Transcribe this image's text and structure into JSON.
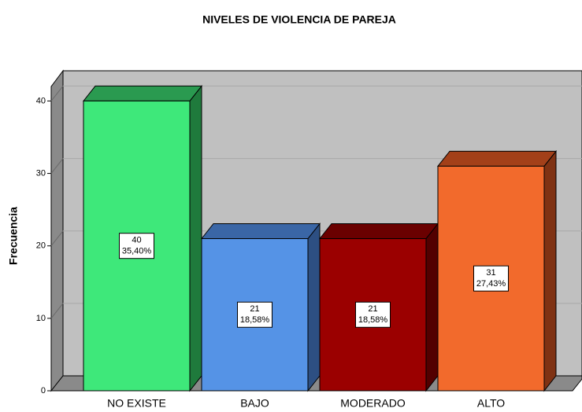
{
  "chart_data": {
    "type": "bar3d",
    "title": "NIVELES DE VIOLENCIA DE PAREJA",
    "ylabel": "Frecuencia",
    "categories": [
      "NO EXISTE",
      "BAJO",
      "MODERADO",
      "ALTO"
    ],
    "values": [
      40,
      21,
      21,
      31
    ],
    "percentages": [
      35.4,
      18.58,
      18.58,
      27.43
    ],
    "percentage_labels": [
      "35,40%",
      "18,58%",
      "18,58%",
      "27,43%"
    ],
    "colors": [
      "#3ee87a",
      "#5593e6",
      "#9b0000",
      "#f26a2c"
    ],
    "top_colors": [
      "#2a9a50",
      "#3a66a6",
      "#6a0000",
      "#a34019"
    ],
    "side_colors": [
      "#1f7a3c",
      "#2d4f82",
      "#520000",
      "#7f3213"
    ],
    "ylim": [
      0,
      42
    ],
    "yticks": [
      0,
      10,
      20,
      30,
      40
    ],
    "grid": true
  }
}
